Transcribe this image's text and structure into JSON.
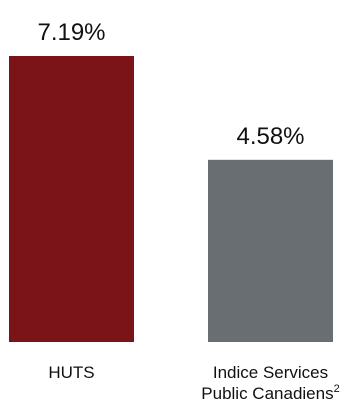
{
  "chart_data": {
    "type": "bar",
    "categories": [
      {
        "lines": [
          "HUTS"
        ],
        "sup": ""
      },
      {
        "lines": [
          "Indice Services",
          "Public Canadiens"
        ],
        "sup": "2"
      }
    ],
    "values": [
      7.19,
      4.58
    ],
    "value_labels": [
      "7.19%",
      "4.58%"
    ],
    "colors": [
      "#7b1418",
      "#686e72"
    ],
    "ylim": [
      0,
      7.19
    ],
    "title": "",
    "xlabel": "",
    "ylabel": "",
    "grid": false,
    "legend": "none"
  }
}
